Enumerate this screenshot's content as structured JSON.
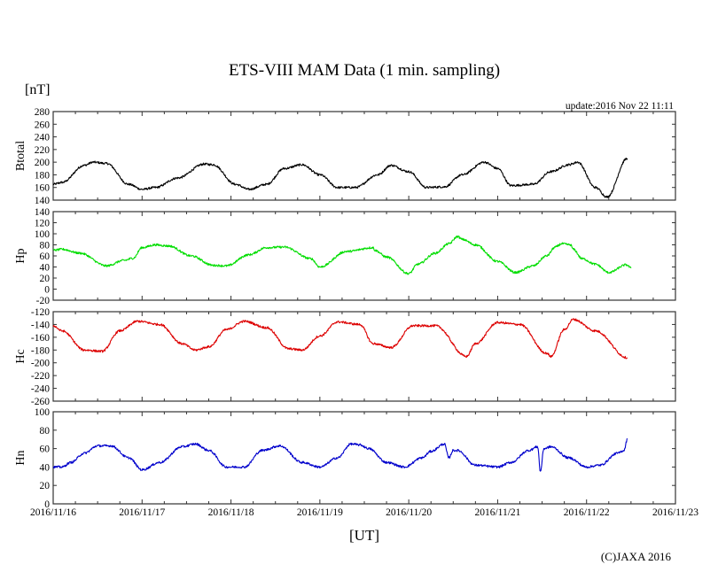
{
  "chart_data": [
    {
      "type": "line",
      "title": "ETS-VIII MAM Data (1 min. sampling)",
      "units_label": "[nT]",
      "xlabel": "[UT]",
      "update_text": "update:2016 Nov 22 11:11",
      "copyright": "(C)JAXA 2016",
      "x_ticks": [
        "2016/11/16",
        "2016/11/17",
        "2016/11/18",
        "2016/11/19",
        "2016/11/20",
        "2016/11/21",
        "2016/11/22",
        "2016/11/23"
      ],
      "x_unit": "days since 2016/11/16 00:00 UT",
      "xlim": [
        0,
        7
      ],
      "grid": false,
      "panels": [
        {
          "name": "Btotal",
          "ylabel": "Btotal",
          "color": "#000000",
          "ylim": [
            140,
            280
          ],
          "y_ticks": [
            "140",
            "160",
            "180",
            "200",
            "220",
            "240",
            "260",
            "280"
          ],
          "series": {
            "x": [
              0.0,
              0.1,
              0.35,
              0.45,
              0.6,
              0.85,
              1.0,
              1.15,
              1.4,
              1.7,
              1.8,
              2.05,
              2.2,
              2.4,
              2.6,
              2.8,
              3.0,
              3.2,
              3.4,
              3.65,
              3.8,
              4.0,
              4.2,
              4.4,
              4.6,
              4.85,
              5.0,
              5.15,
              5.4,
              5.6,
              5.8,
              5.9,
              6.1,
              6.23,
              6.46
            ],
            "y": [
              165,
              168,
              195,
              200,
              198,
              165,
              157,
              160,
              175,
              197,
              196,
              165,
              157,
              165,
              190,
              196,
              180,
              160,
              160,
              180,
              195,
              185,
              160,
              161,
              180,
              200,
              190,
              163,
              165,
              185,
              196,
              200,
              160,
              145,
              206
            ]
          }
        },
        {
          "name": "Hp",
          "ylabel": "Hp",
          "color": "#00dd00",
          "ylim": [
            -20,
            140
          ],
          "y_ticks": [
            "-20",
            "0",
            "20",
            "40",
            "60",
            "80",
            "100",
            "120",
            "140"
          ],
          "series": {
            "x": [
              0.0,
              0.1,
              0.3,
              0.6,
              0.8,
              0.9,
              1.0,
              1.15,
              1.3,
              1.55,
              1.8,
              1.95,
              2.2,
              2.4,
              2.6,
              2.9,
              3.0,
              3.3,
              3.6,
              3.62,
              3.75,
              4.0,
              4.1,
              4.3,
              4.45,
              4.55,
              4.6,
              4.75,
              5.0,
              5.2,
              5.4,
              5.55,
              5.65,
              5.72,
              5.82,
              5.85,
              5.95,
              6.1,
              6.25,
              6.45,
              6.5
            ],
            "y": [
              70,
              72,
              65,
              42,
              52,
              56,
              75,
              80,
              78,
              60,
              43,
              42,
              62,
              75,
              76,
              55,
              40,
              68,
              75,
              70,
              58,
              28,
              45,
              65,
              82,
              95,
              90,
              80,
              50,
              30,
              42,
              60,
              76,
              82,
              80,
              72,
              55,
              45,
              30,
              44,
              38
            ]
          }
        },
        {
          "name": "Hc",
          "ylabel": "Hc",
          "color": "#dd0000",
          "ylim": [
            -260,
            -120
          ],
          "y_ticks": [
            "-260",
            "-240",
            "-220",
            "-200",
            "-180",
            "-160",
            "-140",
            "-120"
          ],
          "series": {
            "x": [
              0.0,
              0.1,
              0.35,
              0.55,
              0.75,
              0.95,
              1.2,
              1.45,
              1.6,
              1.75,
              1.95,
              2.15,
              2.4,
              2.65,
              2.8,
              3.0,
              3.2,
              3.45,
              3.6,
              3.8,
              4.05,
              4.3,
              4.65,
              4.75,
              5.0,
              5.25,
              5.55,
              5.6,
              5.75,
              5.85,
              6.1,
              6.46
            ],
            "y": [
              -142,
              -150,
              -180,
              -182,
              -150,
              -135,
              -140,
              -170,
              -180,
              -175,
              -148,
              -135,
              -145,
              -178,
              -180,
              -158,
              -136,
              -140,
              -170,
              -176,
              -142,
              -142,
              -190,
              -170,
              -137,
              -140,
              -185,
              -190,
              -148,
              -132,
              -150,
              -192
            ]
          }
        },
        {
          "name": "Hn",
          "ylabel": "Hn",
          "color": "#0000cc",
          "ylim": [
            0,
            100
          ],
          "y_ticks": [
            "0",
            "20",
            "40",
            "60",
            "80",
            "100"
          ],
          "series": {
            "x": [
              0.0,
              0.1,
              0.2,
              0.35,
              0.5,
              0.65,
              0.85,
              1.0,
              1.2,
              1.45,
              1.6,
              1.75,
              1.95,
              2.15,
              2.35,
              2.55,
              2.8,
              3.0,
              3.2,
              3.35,
              3.45,
              3.55,
              3.75,
              3.95,
              4.15,
              4.25,
              4.4,
              4.45,
              4.5,
              4.55,
              4.75,
              5.0,
              5.15,
              5.35,
              5.45,
              5.48,
              5.52,
              5.6,
              5.8,
              6.0,
              6.15,
              6.35,
              6.42,
              6.46
            ],
            "y": [
              40,
              40,
              45,
              55,
              63,
              63,
              50,
              37,
              45,
              62,
              65,
              58,
              40,
              40,
              58,
              63,
              45,
              40,
              50,
              65,
              64,
              60,
              45,
              40,
              50,
              57,
              65,
              50,
              58,
              58,
              42,
              40,
              45,
              58,
              62,
              35,
              60,
              62,
              50,
              40,
              42,
              55,
              58,
              70
            ]
          }
        }
      ]
    }
  ]
}
